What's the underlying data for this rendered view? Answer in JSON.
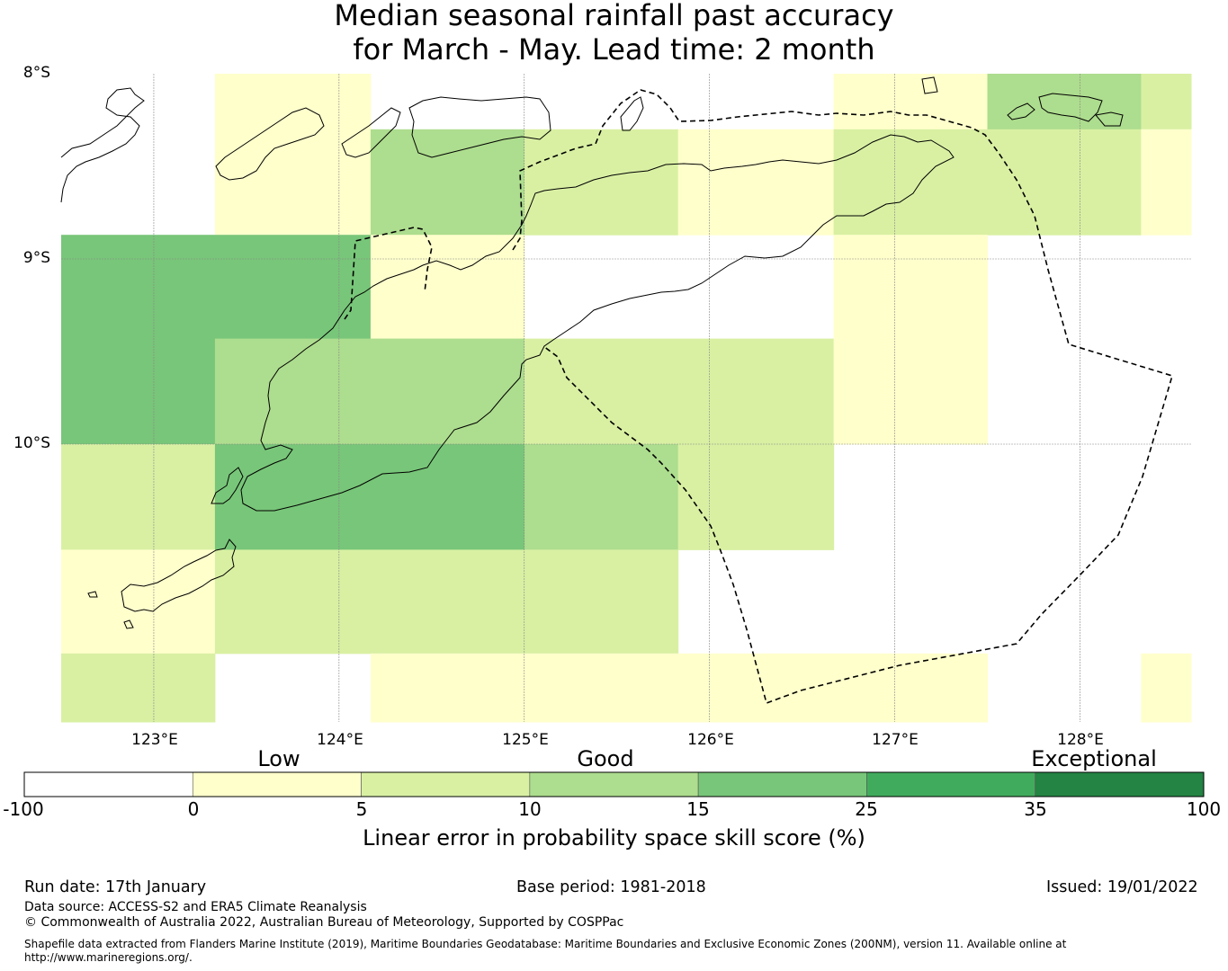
{
  "title": {
    "line1": "Median seasonal rainfall past accuracy",
    "line2": "for March - May. Lead time: 2 month"
  },
  "map": {
    "lat_labels": [
      "8°S",
      "9°S",
      "10°S"
    ],
    "lon_labels": [
      "123°E",
      "124°E",
      "125°E",
      "126°E",
      "127°E",
      "128°E"
    ],
    "lat_range": [
      -11.5,
      -8.0
    ],
    "lon_range": [
      122.5,
      128.6
    ],
    "grid_cells": [
      {
        "lat": [
          -8.3,
          -8.0
        ],
        "lon": [
          123.33,
          124.17
        ],
        "cls": "low"
      },
      {
        "lat": [
          -8.3,
          -8.0
        ],
        "lon": [
          126.67,
          127.5
        ],
        "cls": "low"
      },
      {
        "lat": [
          -8.3,
          -8.0
        ],
        "lon": [
          127.5,
          128.33
        ],
        "cls": "good10"
      },
      {
        "lat": [
          -8.3,
          -8.0
        ],
        "lon": [
          128.33,
          128.6
        ],
        "cls": "good5"
      },
      {
        "lat": [
          -8.87,
          -8.3
        ],
        "lon": [
          123.33,
          124.17
        ],
        "cls": "low"
      },
      {
        "lat": [
          -8.87,
          -8.3
        ],
        "lon": [
          124.17,
          125.0
        ],
        "cls": "good10"
      },
      {
        "lat": [
          -8.87,
          -8.3
        ],
        "lon": [
          125.0,
          125.83
        ],
        "cls": "good5"
      },
      {
        "lat": [
          -8.87,
          -8.3
        ],
        "lon": [
          125.83,
          126.67
        ],
        "cls": "low"
      },
      {
        "lat": [
          -8.87,
          -8.3
        ],
        "lon": [
          126.67,
          128.33
        ],
        "cls": "good5"
      },
      {
        "lat": [
          -8.87,
          -8.3
        ],
        "lon": [
          128.33,
          128.6
        ],
        "cls": "low"
      },
      {
        "lat": [
          -9.43,
          -8.87
        ],
        "lon": [
          122.5,
          124.17
        ],
        "cls": "good15"
      },
      {
        "lat": [
          -9.43,
          -8.87
        ],
        "lon": [
          124.17,
          125.0
        ],
        "cls": "low"
      },
      {
        "lat": [
          -9.43,
          -8.87
        ],
        "lon": [
          126.67,
          127.5
        ],
        "cls": "low"
      },
      {
        "lat": [
          -10.0,
          -9.43
        ],
        "lon": [
          122.5,
          123.33
        ],
        "cls": "good15"
      },
      {
        "lat": [
          -10.0,
          -9.43
        ],
        "lon": [
          123.33,
          125.0
        ],
        "cls": "good10"
      },
      {
        "lat": [
          -10.0,
          -9.43
        ],
        "lon": [
          125.0,
          126.67
        ],
        "cls": "good5"
      },
      {
        "lat": [
          -10.0,
          -9.43
        ],
        "lon": [
          126.67,
          127.5
        ],
        "cls": "low"
      },
      {
        "lat": [
          -10.57,
          -10.0
        ],
        "lon": [
          122.5,
          123.33
        ],
        "cls": "good5"
      },
      {
        "lat": [
          -10.57,
          -10.0
        ],
        "lon": [
          123.33,
          125.0
        ],
        "cls": "good15"
      },
      {
        "lat": [
          -10.57,
          -10.0
        ],
        "lon": [
          125.0,
          125.83
        ],
        "cls": "good10"
      },
      {
        "lat": [
          -10.57,
          -10.0
        ],
        "lon": [
          125.83,
          126.67
        ],
        "cls": "good5"
      },
      {
        "lat": [
          -11.13,
          -10.57
        ],
        "lon": [
          122.5,
          123.33
        ],
        "cls": "low"
      },
      {
        "lat": [
          -11.13,
          -10.57
        ],
        "lon": [
          123.33,
          125.83
        ],
        "cls": "good5"
      },
      {
        "lat": [
          -11.5,
          -11.13
        ],
        "lon": [
          122.5,
          123.33
        ],
        "cls": "good5"
      },
      {
        "lat": [
          -11.5,
          -11.13
        ],
        "lon": [
          124.17,
          127.5
        ],
        "cls": "low"
      },
      {
        "lat": [
          -11.5,
          -11.13
        ],
        "lon": [
          128.33,
          128.6
        ],
        "cls": "low"
      }
    ]
  },
  "colorbar": {
    "categories": [
      "Low",
      "Good",
      "Exceptional"
    ],
    "ticks": [
      "-100",
      "0",
      "5",
      "10",
      "15",
      "25",
      "35",
      "100"
    ],
    "colors": [
      "#ffffff",
      "#ffffcc",
      "#d9f0a3",
      "#addd8e",
      "#78c679",
      "#41ab5d",
      "#238443"
    ],
    "title": "Linear error in probability space skill score (%)"
  },
  "footer": {
    "run_date": "Run date: 17th January",
    "base_period": "Base period: 1981-2018",
    "issued": "Issued: 19/01/2022",
    "data_source": "Data source: ACCESS-S2 and ERA5 Climate Reanalysis",
    "copyright": "© Commonwealth of Australia 2022, Australian Bureau of Meteorology, Supported by COSPPac",
    "shapefile_line1": "Shapefile data extracted from Flanders Marine Institute (2019), Maritime Boundaries Geodatabase: Maritime Boundaries and Exclusive Economic Zones (200NM), version 11. Available online at",
    "shapefile_line2": "http://www.marineregions.org/."
  }
}
